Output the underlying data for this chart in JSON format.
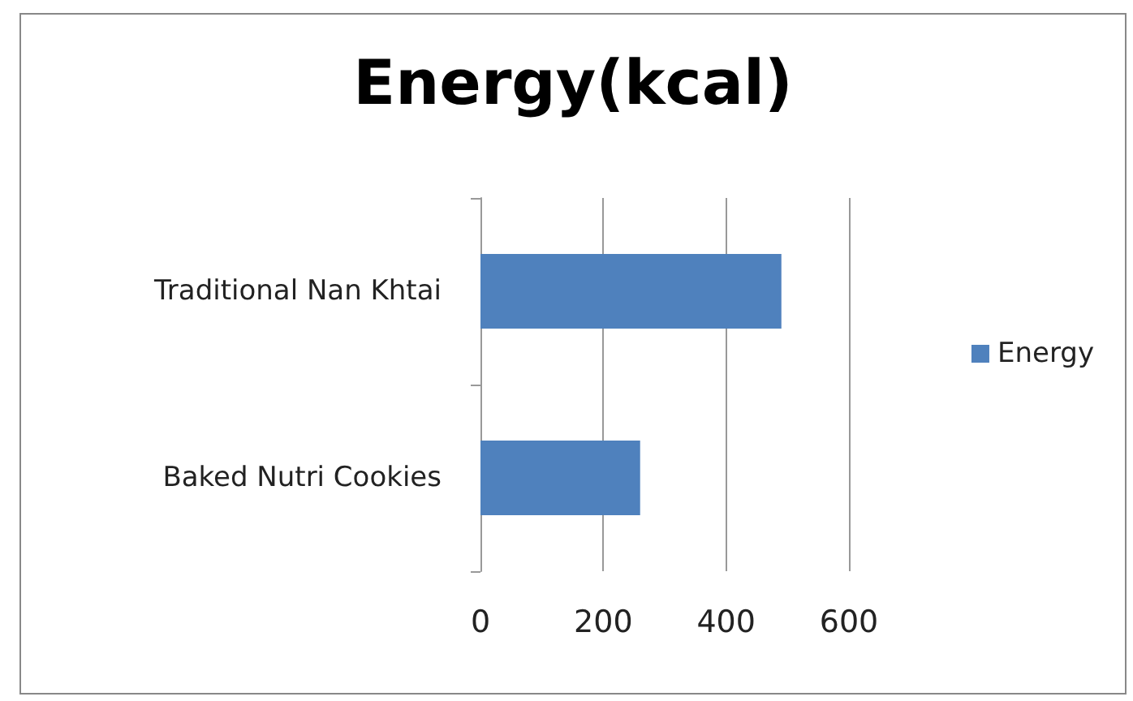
{
  "chart_data": {
    "type": "bar",
    "orientation": "horizontal",
    "title": "Energy(kcal)",
    "categories": [
      "Traditional Nan Khtai",
      "Baked Nutri Cookies"
    ],
    "series": [
      {
        "name": "Energy",
        "color": "#4f81bd",
        "values": [
          490,
          260
        ]
      }
    ],
    "xlim": [
      0,
      600
    ],
    "xticks": [
      0,
      200,
      400,
      600
    ],
    "grid": "x",
    "legend": "right"
  }
}
